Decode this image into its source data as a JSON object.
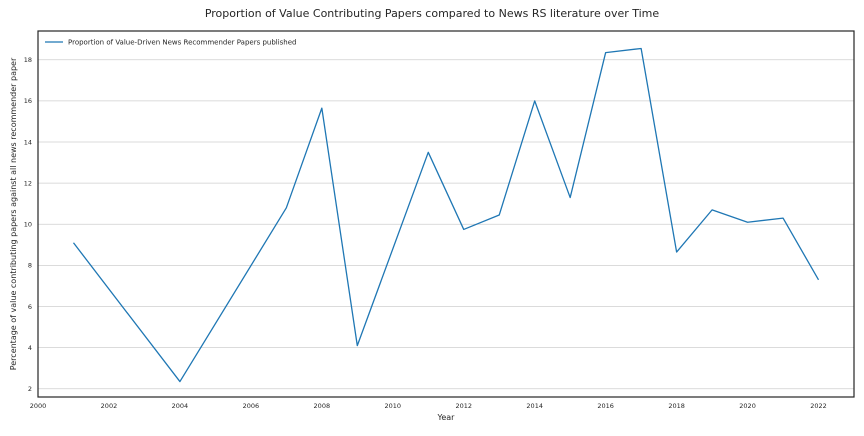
{
  "chart_data": {
    "type": "line",
    "title": "Proportion of Value Contributing Papers compared to News RS literature over Time",
    "xlabel": "Year",
    "ylabel": "Percentage of value contributing papers against all news recommender paper",
    "xlim": [
      2000,
      2023
    ],
    "ylim": [
      1.6,
      19.4
    ],
    "x_ticks": [
      2000,
      2002,
      2004,
      2006,
      2008,
      2010,
      2012,
      2014,
      2016,
      2018,
      2020,
      2022
    ],
    "y_ticks": [
      2,
      4,
      6,
      8,
      10,
      12,
      14,
      16,
      18
    ],
    "grid": "horizontal",
    "legend_position": "top-left",
    "series": [
      {
        "name": "Proportion of Value-Driven News Recommender Papers published",
        "color": "#1f77b4",
        "points": [
          {
            "x": 2001,
            "y": 9.1
          },
          {
            "x": 2004,
            "y": 2.35
          },
          {
            "x": 2007,
            "y": 10.8
          },
          {
            "x": 2008,
            "y": 15.65
          },
          {
            "x": 2009,
            "y": 4.1
          },
          {
            "x": 2011,
            "y": 13.5
          },
          {
            "x": 2012,
            "y": 9.75
          },
          {
            "x": 2013,
            "y": 10.45
          },
          {
            "x": 2014,
            "y": 16.0
          },
          {
            "x": 2015,
            "y": 11.3
          },
          {
            "x": 2016,
            "y": 18.35
          },
          {
            "x": 2017,
            "y": 18.55
          },
          {
            "x": 2018,
            "y": 8.65
          },
          {
            "x": 2019,
            "y": 10.7
          },
          {
            "x": 2020,
            "y": 10.1
          },
          {
            "x": 2021,
            "y": 10.3
          },
          {
            "x": 2022,
            "y": 7.3
          }
        ]
      }
    ]
  }
}
